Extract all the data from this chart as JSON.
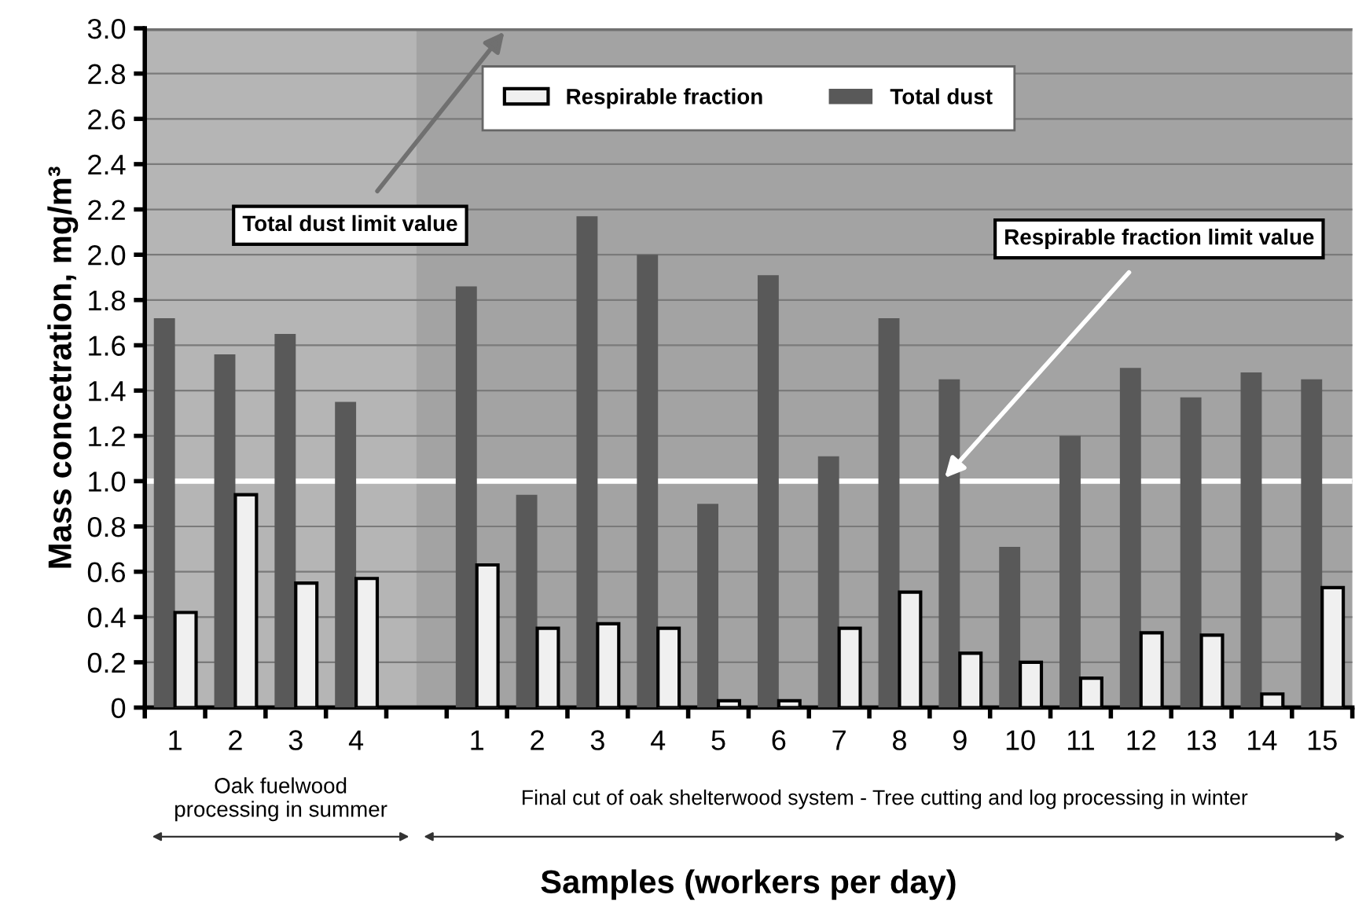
{
  "chart_data": {
    "type": "bar",
    "xlabel": "Samples (workers per day)",
    "ylabel": "Mass concetration, mg/m³",
    "categories": [
      "1",
      "2",
      "3",
      "4",
      null,
      "1",
      "2",
      "3",
      "4",
      "5",
      "6",
      "7",
      "8",
      "9",
      "10",
      "11",
      "12",
      "13",
      "14",
      "15"
    ],
    "series": [
      {
        "name": "Total dust",
        "color": "#595959",
        "values": [
          1.72,
          1.56,
          1.65,
          1.35,
          null,
          1.86,
          0.94,
          2.17,
          2.0,
          0.9,
          1.91,
          1.11,
          1.72,
          1.45,
          0.71,
          1.2,
          1.5,
          1.37,
          1.48,
          1.45
        ]
      },
      {
        "name": "Respirable fraction",
        "color": "#f0f0f0",
        "values": [
          0.42,
          0.94,
          0.55,
          0.57,
          null,
          0.63,
          0.35,
          0.37,
          0.35,
          0.03,
          0.03,
          0.35,
          0.51,
          0.24,
          0.2,
          0.13,
          0.33,
          0.32,
          0.06,
          0.53
        ]
      }
    ],
    "ylim": [
      0,
      3.0
    ],
    "yticks": [
      0,
      0.2,
      0.4,
      0.6,
      0.8,
      {
        "value": 1.0,
        "label": "1.0"
      },
      1.2,
      1.4,
      1.6,
      1.8,
      {
        "value": 2.0,
        "label": "2.0"
      },
      2.2,
      2.4,
      2.6,
      2.8,
      {
        "value": 3.0,
        "label": "3.0"
      }
    ],
    "grid": "y",
    "legend": "top",
    "ref_lines": [
      {
        "axis": "y",
        "value": 1.0,
        "label": "Respirable fraction limit value",
        "color": "#ffffff"
      },
      {
        "axis": "y",
        "value": 3.0,
        "label": "Total dust limit value",
        "color": "#707070"
      }
    ],
    "annotations": [
      "Oak fuelwood\nprocessing in summer",
      "Final cut of oak shelterwood system - Tree cutting and log processing in winter"
    ]
  }
}
